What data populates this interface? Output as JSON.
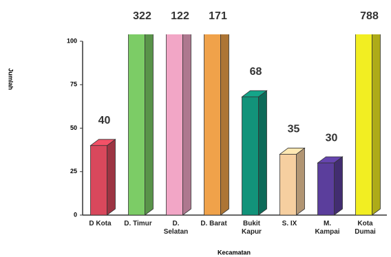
{
  "chart_data": {
    "type": "bar3d",
    "x_label": "Kecamatan",
    "y_label": "Jumlah",
    "categories": [
      "D Kota",
      "D. Timur",
      "D.\nSelatan",
      "D. Barat",
      "Bukit\nKapur",
      "S. IX",
      "M.\nKampai",
      "Kota\nDumai"
    ],
    "values": [
      40,
      322,
      122,
      171,
      68,
      35,
      30,
      788
    ],
    "colors": [
      "#d9485c",
      "#7ccc66",
      "#f2a6c6",
      "#f0a24a",
      "#12937a",
      "#f6cfa0",
      "#5b3e9c",
      "#f2ee22"
    ],
    "ylim": [
      0,
      100
    ],
    "yticks": [
      0,
      25,
      50,
      75,
      100
    ]
  }
}
